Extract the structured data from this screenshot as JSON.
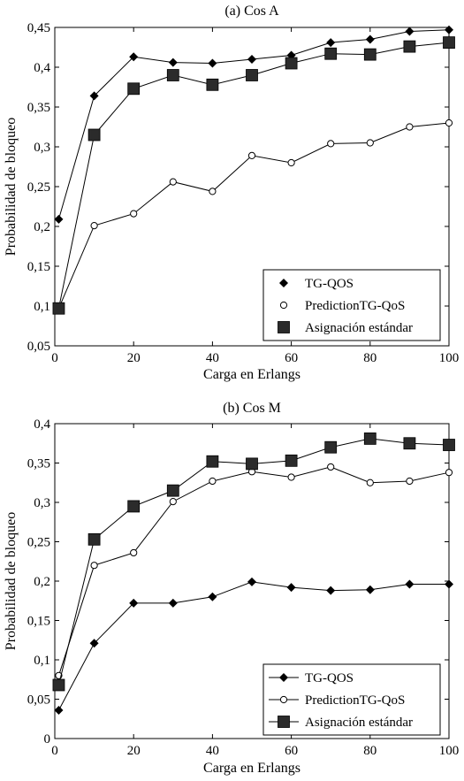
{
  "chart_data": [
    {
      "type": "line",
      "title": "(a) Cos A",
      "xlabel": "Carga en Erlangs",
      "ylabel": "Probabilidad de bloqueo",
      "xlim": [
        0,
        100
      ],
      "ylim": [
        0.05,
        0.45
      ],
      "xticks": [
        0,
        20,
        40,
        60,
        80,
        100
      ],
      "yticks": [
        0.05,
        0.1,
        0.15,
        0.2,
        0.25,
        0.3,
        0.35,
        0.4,
        0.45
      ],
      "ytick_labels": [
        "0,05",
        "0,1",
        "0,15",
        "0,2",
        "0,25",
        "0,3",
        "0,35",
        "0,4",
        "0,45"
      ],
      "grid": false,
      "legend_position": "bottom-right",
      "x": [
        1,
        10,
        20,
        30,
        40,
        50,
        60,
        70,
        80,
        90,
        100
      ],
      "series": [
        {
          "name": "TG-QOS",
          "marker": "diamond",
          "values": [
            0.209,
            0.364,
            0.413,
            0.406,
            0.405,
            0.41,
            0.415,
            0.431,
            0.435,
            0.445,
            0.447
          ]
        },
        {
          "name": "PredictionTG-QoS",
          "marker": "circle",
          "values": [
            0.097,
            0.201,
            0.216,
            0.256,
            0.244,
            0.289,
            0.28,
            0.304,
            0.305,
            0.325,
            0.33
          ]
        },
        {
          "name": "Asignación estándar",
          "marker": "square",
          "values": [
            0.097,
            0.315,
            0.373,
            0.39,
            0.378,
            0.39,
            0.405,
            0.417,
            0.416,
            0.426,
            0.431
          ]
        }
      ]
    },
    {
      "type": "line",
      "title": "(b) Cos M",
      "xlabel": "Carga en Erlangs",
      "ylabel": "Probabilidad de bloqueo",
      "xlim": [
        0,
        100
      ],
      "ylim": [
        0,
        0.4
      ],
      "xticks": [
        0,
        20,
        40,
        60,
        80,
        100
      ],
      "yticks": [
        0,
        0.05,
        0.1,
        0.15,
        0.2,
        0.25,
        0.3,
        0.35,
        0.4
      ],
      "ytick_labels": [
        "0",
        "0,05",
        "0,1",
        "0,15",
        "0,2",
        "0,25",
        "0,3",
        "0,35",
        "0,4"
      ],
      "grid": false,
      "legend_position": "bottom-right",
      "x": [
        1,
        10,
        20,
        30,
        40,
        50,
        60,
        70,
        80,
        90,
        100
      ],
      "series": [
        {
          "name": "TG-QOS",
          "marker": "diamond",
          "values": [
            0.036,
            0.121,
            0.172,
            0.172,
            0.18,
            0.199,
            0.192,
            0.188,
            0.189,
            0.196,
            0.196
          ]
        },
        {
          "name": "PredictionTG-QoS",
          "marker": "circle",
          "values": [
            0.08,
            0.22,
            0.236,
            0.301,
            0.327,
            0.339,
            0.332,
            0.345,
            0.325,
            0.327,
            0.338
          ]
        },
        {
          "name": "Asignación estándar",
          "marker": "square",
          "values": [
            0.068,
            0.253,
            0.295,
            0.315,
            0.352,
            0.349,
            0.353,
            0.37,
            0.381,
            0.375,
            0.373
          ]
        }
      ]
    }
  ]
}
